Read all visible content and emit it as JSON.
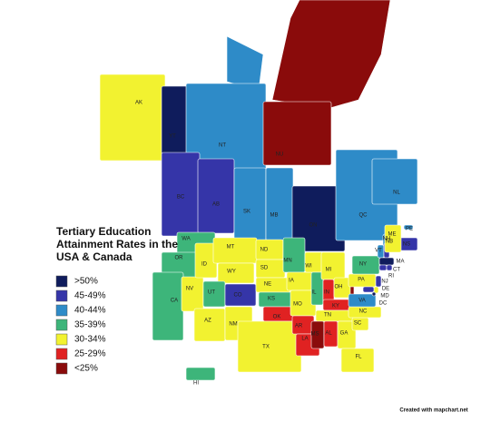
{
  "title_lines": [
    "Tertiary Education",
    "Attainment Rates in the",
    "USA & Canada"
  ],
  "legend": [
    {
      "label": ">50%",
      "color": "#0f1c5c"
    },
    {
      "label": "45-49%",
      "color": "#3535a8"
    },
    {
      "label": "40-44%",
      "color": "#2e8bc8"
    },
    {
      "label": "35-39%",
      "color": "#3db57a"
    },
    {
      "label": "30-34%",
      "color": "#f2f230"
    },
    {
      "label": "25-29%",
      "color": "#e02222"
    },
    {
      "label": "<25%",
      "color": "#8a0b0b"
    }
  ],
  "regions": [
    {
      "label": "AK",
      "color": "#f2f230"
    },
    {
      "label": "YT",
      "color": "#0f1c5c"
    },
    {
      "label": "NT",
      "color": "#2e8bc8"
    },
    {
      "label": "NU",
      "color": "#8a0b0b"
    },
    {
      "label": "BC",
      "color": "#3535a8"
    },
    {
      "label": "AB",
      "color": "#3535a8"
    },
    {
      "label": "SK",
      "color": "#2e8bc8"
    },
    {
      "label": "MB",
      "color": "#2e8bc8"
    },
    {
      "label": "ON",
      "color": "#0f1c5c"
    },
    {
      "label": "QC",
      "color": "#2e8bc8"
    },
    {
      "label": "NL",
      "color": "#2e8bc8"
    },
    {
      "label": "NB",
      "color": "#2e8bc8"
    },
    {
      "label": "PE",
      "color": "#2e8bc8"
    },
    {
      "label": "NS",
      "color": "#3535a8"
    },
    {
      "label": "WA",
      "color": "#3db57a"
    },
    {
      "label": "OR",
      "color": "#3db57a"
    },
    {
      "label": "CA",
      "color": "#3db57a"
    },
    {
      "label": "NV",
      "color": "#f2f230"
    },
    {
      "label": "ID",
      "color": "#f2f230"
    },
    {
      "label": "MT",
      "color": "#f2f230"
    },
    {
      "label": "WY",
      "color": "#f2f230"
    },
    {
      "label": "UT",
      "color": "#3db57a"
    },
    {
      "label": "CO",
      "color": "#3535a8"
    },
    {
      "label": "AZ",
      "color": "#f2f230"
    },
    {
      "label": "NM",
      "color": "#f2f230"
    },
    {
      "label": "ND",
      "color": "#f2f230"
    },
    {
      "label": "SD",
      "color": "#f2f230"
    },
    {
      "label": "NE",
      "color": "#f2f230"
    },
    {
      "label": "KS",
      "color": "#3db57a"
    },
    {
      "label": "OK",
      "color": "#e02222"
    },
    {
      "label": "TX",
      "color": "#f2f230"
    },
    {
      "label": "MN",
      "color": "#3db57a"
    },
    {
      "label": "IA",
      "color": "#f2f230"
    },
    {
      "label": "MO",
      "color": "#f2f230"
    },
    {
      "label": "AR",
      "color": "#e02222"
    },
    {
      "label": "LA",
      "color": "#e02222"
    },
    {
      "label": "WI",
      "color": "#f2f230"
    },
    {
      "label": "IL",
      "color": "#3db57a"
    },
    {
      "label": "MI",
      "color": "#f2f230"
    },
    {
      "label": "IN",
      "color": "#e02222"
    },
    {
      "label": "OH",
      "color": "#f2f230"
    },
    {
      "label": "KY",
      "color": "#e02222"
    },
    {
      "label": "TN",
      "color": "#f2f230"
    },
    {
      "label": "MS",
      "color": "#8a0b0b"
    },
    {
      "label": "AL",
      "color": "#e02222"
    },
    {
      "label": "GA",
      "color": "#f2f230"
    },
    {
      "label": "FL",
      "color": "#f2f230"
    },
    {
      "label": "SC",
      "color": "#f2f230"
    },
    {
      "label": "NC",
      "color": "#f2f230"
    },
    {
      "label": "VA",
      "color": "#2e8bc8"
    },
    {
      "label": "PA",
      "color": "#f2f230"
    },
    {
      "label": "NY",
      "color": "#3db57a"
    },
    {
      "label": "VT",
      "color": "#2e8bc8"
    },
    {
      "label": "NH",
      "color": "#3535a8"
    },
    {
      "label": "ME",
      "color": "#f2f230"
    },
    {
      "label": "MA",
      "color": "#0f1c5c"
    },
    {
      "label": "CT",
      "color": "#3535a8"
    },
    {
      "label": "RI",
      "color": "#3535a8"
    },
    {
      "label": "NJ",
      "color": "#3535a8"
    },
    {
      "label": "DE",
      "color": "#f2f230"
    },
    {
      "label": "MD",
      "color": "#3535a8"
    },
    {
      "label": "DC",
      "color": "#0f1c5c"
    },
    {
      "label": "HI",
      "color": "#3db57a"
    }
  ],
  "credit": "Created with mapchart.net"
}
